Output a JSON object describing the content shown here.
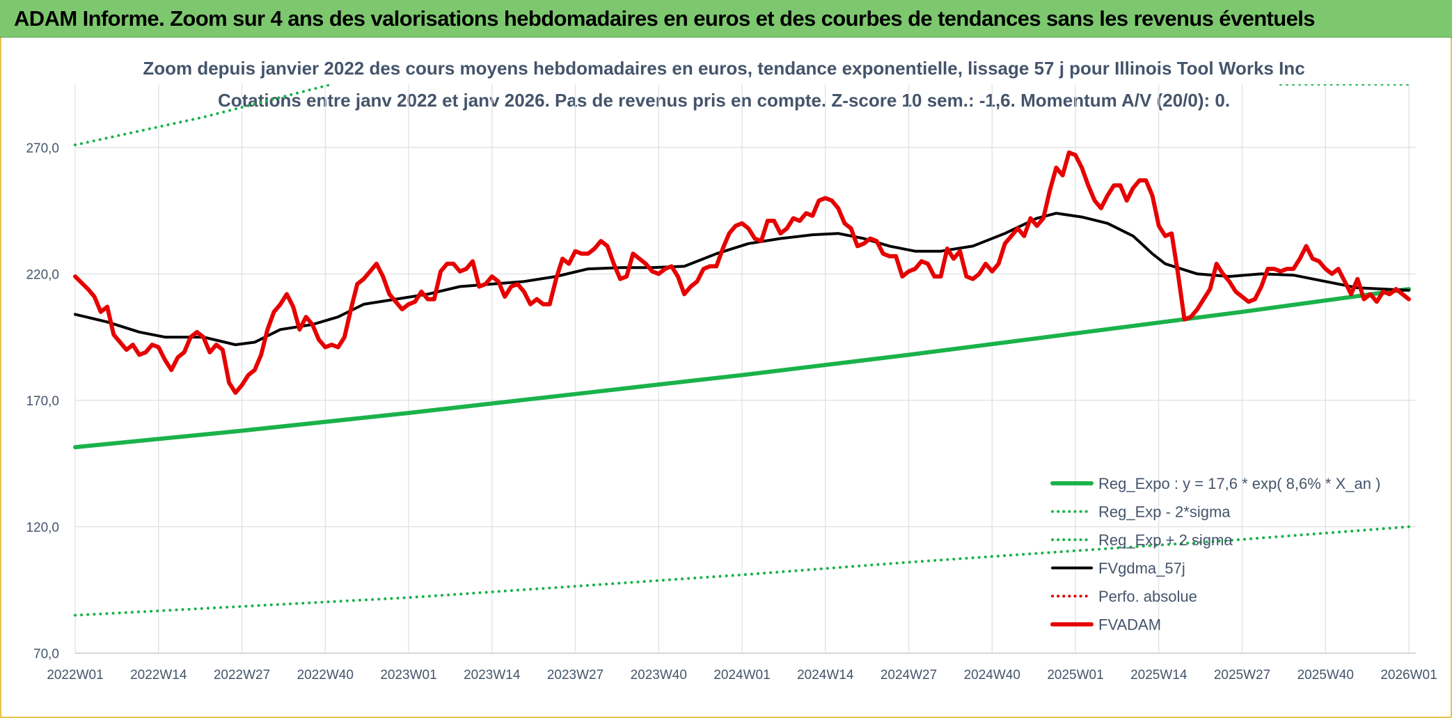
{
  "banner": {
    "title": "ADAM Informe. Zoom sur 4 ans des valorisations hebdomadaires en euros et des courbes de tendances sans les revenus éventuels"
  },
  "colors": {
    "banner": "#7dc86f",
    "frame": "#e8c44a",
    "reg_expo": "#1ab24a",
    "sigma": "#1ab24a",
    "fvgdma": "#000000",
    "perfo": "#e00000",
    "fvadam": "#e60000",
    "text": "#44546a"
  },
  "chart_data": {
    "type": "line",
    "title": "Zoom depuis janvier 2022 des cours moyens hebdomadaires en euros, tendance exponentielle, lissage 57 j pour Illinois Tool Works Inc",
    "subtitle": "Cotations entre janv 2022 et janv 2026. Pas de revenus pris en compte. Z-score 10 sem.: -1,6. Momentum A/V (20/0): 0.",
    "x_unit": "weeks since 2022W01",
    "x_ticks": [
      {
        "x": 0,
        "label": "2022W01"
      },
      {
        "x": 13,
        "label": "2022W14"
      },
      {
        "x": 26,
        "label": "2022W27"
      },
      {
        "x": 39,
        "label": "2022W40"
      },
      {
        "x": 52,
        "label": "2023W01"
      },
      {
        "x": 65,
        "label": "2023W14"
      },
      {
        "x": 78,
        "label": "2023W27"
      },
      {
        "x": 91,
        "label": "2023W40"
      },
      {
        "x": 104,
        "label": "2024W01"
      },
      {
        "x": 117,
        "label": "2024W14"
      },
      {
        "x": 130,
        "label": "2024W27"
      },
      {
        "x": 143,
        "label": "2024W40"
      },
      {
        "x": 156,
        "label": "2025W01"
      },
      {
        "x": 169,
        "label": "2025W14"
      },
      {
        "x": 182,
        "label": "2025W27"
      },
      {
        "x": 195,
        "label": "2025W40"
      },
      {
        "x": 208,
        "label": "2026W01"
      }
    ],
    "xlim": [
      0,
      208
    ],
    "ylim": [
      70,
      295
    ],
    "y_ticks": [
      {
        "v": 70,
        "label": "70,0"
      },
      {
        "v": 120,
        "label": "120,0"
      },
      {
        "v": 170,
        "label": "170,0"
      },
      {
        "v": 220,
        "label": "220,0"
      },
      {
        "v": 270,
        "label": "270,0"
      }
    ],
    "grid": true,
    "legend_position": "bottom-right",
    "legend": [
      {
        "key": "reg_expo",
        "label": "Reg_Expo : y = 17,6 * exp( 8,6% *  X_an )",
        "style": "solid-thick",
        "color": "#1ab24a"
      },
      {
        "key": "reg_minus",
        "label": "Reg_Exp - 2*sigma",
        "style": "dotted",
        "color": "#1ab24a"
      },
      {
        "key": "reg_plus",
        "label": "Reg_Exp + 2 sigma",
        "style": "dotted",
        "color": "#1ab24a"
      },
      {
        "key": "fvgdma",
        "label": "FVgdma_57j",
        "style": "solid",
        "color": "#000000"
      },
      {
        "key": "perfo",
        "label": "Perfo. absolue",
        "style": "dotted",
        "color": "#e00000"
      },
      {
        "key": "fvadam",
        "label": "FVADAM",
        "style": "solid-thick",
        "color": "#e60000"
      }
    ],
    "series": [
      {
        "key": "reg_expo",
        "name": "Reg_Expo : y = 17,6 * exp( 8,6% *  X_an )",
        "points": [
          [
            0,
            151.5
          ],
          [
            26,
            158
          ],
          [
            52,
            165
          ],
          [
            78,
            172.5
          ],
          [
            104,
            180
          ],
          [
            130,
            188
          ],
          [
            156,
            196.5
          ],
          [
            182,
            205
          ],
          [
            208,
            214
          ]
        ]
      },
      {
        "key": "reg_minus",
        "name": "Reg_Exp - 2*sigma",
        "points": [
          [
            0,
            85
          ],
          [
            26,
            88.5
          ],
          [
            52,
            92
          ],
          [
            78,
            96.5
          ],
          [
            104,
            101
          ],
          [
            130,
            106
          ],
          [
            156,
            110.5
          ],
          [
            182,
            115
          ],
          [
            208,
            120
          ]
        ]
      },
      {
        "key": "reg_plus",
        "name": "Reg_Exp + 2 sigma",
        "points": [
          [
            0,
            271
          ],
          [
            20,
            282
          ],
          [
            40,
            295
          ]
        ]
      },
      {
        "key": "reg_plus_tail",
        "name": "",
        "points": [
          [
            188,
            295
          ],
          [
            208,
            295
          ]
        ]
      },
      {
        "key": "fvgdma",
        "name": "FVgdma_57j",
        "points": [
          [
            0,
            204
          ],
          [
            5,
            201
          ],
          [
            10,
            197
          ],
          [
            14,
            195
          ],
          [
            20,
            195
          ],
          [
            25,
            192
          ],
          [
            28,
            193
          ],
          [
            32,
            198
          ],
          [
            37,
            200
          ],
          [
            41,
            203
          ],
          [
            45,
            208
          ],
          [
            50,
            210
          ],
          [
            55,
            212
          ],
          [
            60,
            215
          ],
          [
            65,
            216
          ],
          [
            70,
            217
          ],
          [
            75,
            219
          ],
          [
            80,
            222
          ],
          [
            85,
            222.5
          ],
          [
            90,
            222.5
          ],
          [
            95,
            223
          ],
          [
            100,
            228
          ],
          [
            105,
            232
          ],
          [
            110,
            234
          ],
          [
            115,
            235.5
          ],
          [
            119,
            236
          ],
          [
            123,
            234
          ],
          [
            127,
            231
          ],
          [
            131,
            229
          ],
          [
            135,
            229
          ],
          [
            140,
            231
          ],
          [
            145,
            236
          ],
          [
            150,
            242
          ],
          [
            153,
            244
          ],
          [
            157,
            242.5
          ],
          [
            161,
            240
          ],
          [
            165,
            235
          ],
          [
            168,
            228
          ],
          [
            170,
            224
          ],
          [
            175,
            220
          ],
          [
            180,
            219
          ],
          [
            185,
            220
          ],
          [
            190,
            219.5
          ],
          [
            195,
            217
          ],
          [
            200,
            214.5
          ],
          [
            208,
            213.5
          ]
        ]
      },
      {
        "key": "fvadam",
        "name": "FVADAM",
        "points": [
          [
            0,
            219
          ],
          [
            2,
            214
          ],
          [
            3,
            211
          ],
          [
            4,
            205
          ],
          [
            5,
            207
          ],
          [
            6,
            196
          ],
          [
            7,
            193
          ],
          [
            8,
            190
          ],
          [
            9,
            192
          ],
          [
            10,
            188
          ],
          [
            11,
            189
          ],
          [
            12,
            192
          ],
          [
            13,
            191
          ],
          [
            14,
            186
          ],
          [
            15,
            182
          ],
          [
            16,
            187
          ],
          [
            17,
            189
          ],
          [
            18,
            195
          ],
          [
            19,
            197
          ],
          [
            20,
            195
          ],
          [
            21,
            189
          ],
          [
            22,
            192
          ],
          [
            23,
            190
          ],
          [
            24,
            177
          ],
          [
            25,
            173
          ],
          [
            26,
            176
          ],
          [
            27,
            180
          ],
          [
            28,
            182
          ],
          [
            29,
            188
          ],
          [
            30,
            198
          ],
          [
            31,
            205
          ],
          [
            32,
            208
          ],
          [
            33,
            212
          ],
          [
            34,
            207
          ],
          [
            35,
            198
          ],
          [
            36,
            203
          ],
          [
            37,
            200
          ],
          [
            38,
            194
          ],
          [
            39,
            191
          ],
          [
            40,
            192
          ],
          [
            41,
            191
          ],
          [
            42,
            195
          ],
          [
            43,
            206
          ],
          [
            44,
            216
          ],
          [
            45,
            218
          ],
          [
            46,
            221
          ],
          [
            47,
            224
          ],
          [
            48,
            219
          ],
          [
            49,
            212
          ],
          [
            50,
            209
          ],
          [
            51,
            206
          ],
          [
            52,
            208
          ],
          [
            53,
            209
          ],
          [
            54,
            213
          ],
          [
            55,
            210
          ],
          [
            56,
            210
          ],
          [
            57,
            221
          ],
          [
            58,
            224
          ],
          [
            59,
            224
          ],
          [
            60,
            221
          ],
          [
            61,
            222
          ],
          [
            62,
            225
          ],
          [
            63,
            215
          ],
          [
            64,
            216
          ],
          [
            65,
            219
          ],
          [
            66,
            217
          ],
          [
            67,
            211
          ],
          [
            68,
            215
          ],
          [
            69,
            216
          ],
          [
            70,
            213
          ],
          [
            71,
            208
          ],
          [
            72,
            210
          ],
          [
            73,
            208
          ],
          [
            74,
            208
          ],
          [
            75,
            218
          ],
          [
            76,
            226
          ],
          [
            77,
            224
          ],
          [
            78,
            229
          ],
          [
            79,
            228
          ],
          [
            80,
            228
          ],
          [
            81,
            230
          ],
          [
            82,
            233
          ],
          [
            83,
            231
          ],
          [
            84,
            224
          ],
          [
            85,
            218
          ],
          [
            86,
            219
          ],
          [
            87,
            228
          ],
          [
            88,
            226
          ],
          [
            89,
            224
          ],
          [
            90,
            221
          ],
          [
            91,
            220
          ],
          [
            92,
            222
          ],
          [
            93,
            223
          ],
          [
            94,
            219
          ],
          [
            95,
            212
          ],
          [
            96,
            215
          ],
          [
            97,
            217
          ],
          [
            98,
            222
          ],
          [
            99,
            223
          ],
          [
            100,
            223
          ],
          [
            101,
            230
          ],
          [
            102,
            236
          ],
          [
            103,
            239
          ],
          [
            104,
            240
          ],
          [
            105,
            238
          ],
          [
            106,
            234
          ],
          [
            107,
            233
          ],
          [
            108,
            241
          ],
          [
            109,
            241
          ],
          [
            110,
            236
          ],
          [
            111,
            238
          ],
          [
            112,
            242
          ],
          [
            113,
            241
          ],
          [
            114,
            244
          ],
          [
            115,
            243
          ],
          [
            116,
            249
          ],
          [
            117,
            250
          ],
          [
            118,
            249
          ],
          [
            119,
            246
          ],
          [
            120,
            240
          ],
          [
            121,
            238
          ],
          [
            122,
            231
          ],
          [
            123,
            232
          ],
          [
            124,
            234
          ],
          [
            125,
            233
          ],
          [
            126,
            228
          ],
          [
            127,
            227
          ],
          [
            128,
            227
          ],
          [
            129,
            219
          ],
          [
            130,
            221
          ],
          [
            131,
            222
          ],
          [
            132,
            225
          ],
          [
            133,
            224
          ],
          [
            134,
            219
          ],
          [
            135,
            219
          ],
          [
            136,
            230
          ],
          [
            137,
            226
          ],
          [
            138,
            229
          ],
          [
            139,
            219
          ],
          [
            140,
            218
          ],
          [
            141,
            220
          ],
          [
            142,
            224
          ],
          [
            143,
            221
          ],
          [
            144,
            224
          ],
          [
            145,
            232
          ],
          [
            146,
            235
          ],
          [
            147,
            238
          ],
          [
            148,
            235
          ],
          [
            149,
            242
          ],
          [
            150,
            239
          ],
          [
            151,
            242
          ],
          [
            152,
            253
          ],
          [
            153,
            262
          ],
          [
            154,
            259
          ],
          [
            155,
            268
          ],
          [
            156,
            267
          ],
          [
            157,
            262
          ],
          [
            158,
            255
          ],
          [
            159,
            249
          ],
          [
            160,
            246
          ],
          [
            161,
            251
          ],
          [
            162,
            255
          ],
          [
            163,
            255
          ],
          [
            164,
            249
          ],
          [
            165,
            254
          ],
          [
            166,
            257
          ],
          [
            167,
            257
          ],
          [
            168,
            251
          ],
          [
            169,
            239
          ],
          [
            170,
            235
          ],
          [
            171,
            236
          ],
          [
            172,
            220
          ],
          [
            173,
            202
          ],
          [
            174,
            203
          ],
          [
            175,
            206
          ],
          [
            176,
            210
          ],
          [
            177,
            214
          ],
          [
            178,
            224
          ],
          [
            179,
            220
          ],
          [
            180,
            217
          ],
          [
            181,
            213
          ],
          [
            182,
            211
          ],
          [
            183,
            209
          ],
          [
            184,
            210
          ],
          [
            185,
            215
          ],
          [
            186,
            222
          ],
          [
            187,
            222
          ],
          [
            188,
            221
          ],
          [
            189,
            222
          ],
          [
            190,
            222
          ],
          [
            191,
            226
          ],
          [
            192,
            231
          ],
          [
            193,
            226
          ],
          [
            194,
            225
          ],
          [
            195,
            222
          ],
          [
            196,
            220
          ],
          [
            197,
            222
          ],
          [
            198,
            217
          ],
          [
            199,
            212
          ],
          [
            200,
            218
          ],
          [
            201,
            210
          ],
          [
            202,
            212
          ],
          [
            203,
            209
          ],
          [
            204,
            213
          ],
          [
            205,
            212
          ],
          [
            206,
            214
          ],
          [
            207,
            212
          ],
          [
            208,
            210
          ]
        ]
      }
    ]
  }
}
